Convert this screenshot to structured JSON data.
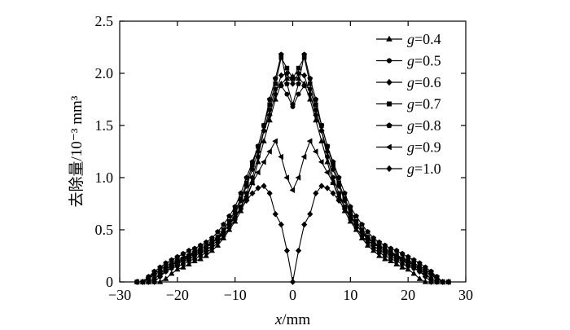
{
  "chart_data": {
    "type": "line",
    "xlabel": {
      "var": "x",
      "unit": "/mm"
    },
    "ylabel": "去除量/10⁻³ mm³",
    "xlim": [
      -30,
      30
    ],
    "ylim": [
      0,
      2.5
    ],
    "xticks": [
      -30,
      -20,
      -10,
      0,
      10,
      20,
      30
    ],
    "yticks": [
      0,
      0.5,
      1.0,
      1.5,
      2.0,
      2.5
    ],
    "xtick_labels": [
      "−30",
      "−20",
      "−10",
      "0",
      "10",
      "20",
      "30"
    ],
    "ytick_labels": [
      "0",
      "0.5",
      "1.0",
      "1.5",
      "2.0",
      "2.5"
    ],
    "grid": false,
    "legend": "top-right",
    "line_color": "#000000",
    "x": [
      -27,
      -26,
      -25,
      -24,
      -23,
      -22,
      -21,
      -20,
      -19,
      -18,
      -17,
      -16,
      -15,
      -14,
      -13,
      -12,
      -11,
      -10,
      -9,
      -8,
      -7,
      -6,
      -5,
      -4,
      -3,
      -2,
      -1,
      0,
      1,
      2,
      3,
      4,
      5,
      6,
      7,
      8,
      9,
      10,
      11,
      12,
      13,
      14,
      15,
      16,
      17,
      18,
      19,
      20,
      21,
      22,
      23,
      24,
      25,
      26,
      27
    ],
    "series": [
      {
        "name": "g=0.4",
        "label_var": "g",
        "label_value": "=0.4",
        "marker": "triangle-up",
        "values": [
          0,
          0,
          0,
          0,
          0,
          0.03,
          0.08,
          0.12,
          0.14,
          0.17,
          0.2,
          0.22,
          0.25,
          0.3,
          0.35,
          0.42,
          0.5,
          0.58,
          0.68,
          0.8,
          0.95,
          1.15,
          1.35,
          1.55,
          1.75,
          1.9,
          1.95,
          1.97,
          1.95,
          1.9,
          1.75,
          1.55,
          1.35,
          1.15,
          0.95,
          0.8,
          0.68,
          0.58,
          0.5,
          0.42,
          0.35,
          0.3,
          0.25,
          0.22,
          0.2,
          0.17,
          0.14,
          0.12,
          0.08,
          0.03,
          0,
          0,
          0,
          0,
          0
        ]
      },
      {
        "name": "g=0.5",
        "label_var": "g",
        "label_value": "=0.5",
        "marker": "circle",
        "values": [
          0,
          0,
          0,
          0.03,
          0.07,
          0.1,
          0.13,
          0.15,
          0.17,
          0.2,
          0.22,
          0.25,
          0.28,
          0.32,
          0.38,
          0.44,
          0.52,
          0.6,
          0.72,
          0.85,
          1.0,
          1.2,
          1.45,
          1.65,
          1.85,
          1.88,
          1.8,
          1.68,
          1.8,
          1.88,
          1.85,
          1.65,
          1.45,
          1.2,
          1.0,
          0.85,
          0.72,
          0.6,
          0.52,
          0.44,
          0.38,
          0.32,
          0.28,
          0.25,
          0.22,
          0.2,
          0.17,
          0.15,
          0.13,
          0.1,
          0.07,
          0.03,
          0,
          0,
          0
        ]
      },
      {
        "name": "g=0.6",
        "label_var": "g",
        "label_value": "=0.6",
        "marker": "diamond",
        "values": [
          0,
          0,
          0,
          0,
          0.05,
          0.1,
          0.14,
          0.17,
          0.2,
          0.22,
          0.25,
          0.28,
          0.3,
          0.35,
          0.4,
          0.48,
          0.55,
          0.65,
          0.78,
          0.92,
          1.08,
          1.25,
          1.45,
          1.6,
          1.8,
          1.98,
          2.0,
          1.9,
          2.0,
          1.98,
          1.8,
          1.6,
          1.45,
          1.25,
          1.08,
          0.92,
          0.78,
          0.65,
          0.55,
          0.48,
          0.4,
          0.35,
          0.3,
          0.28,
          0.25,
          0.22,
          0.2,
          0.17,
          0.14,
          0.1,
          0.05,
          0,
          0,
          0,
          0
        ]
      },
      {
        "name": "g=0.7",
        "label_var": "g",
        "label_value": "=0.7",
        "marker": "square",
        "values": [
          0,
          0,
          0,
          0.03,
          0.08,
          0.12,
          0.16,
          0.2,
          0.22,
          0.25,
          0.28,
          0.3,
          0.33,
          0.38,
          0.43,
          0.5,
          0.58,
          0.68,
          0.8,
          0.95,
          1.12,
          1.3,
          1.5,
          1.7,
          1.9,
          2.15,
          2.05,
          1.95,
          2.05,
          2.15,
          1.9,
          1.7,
          1.5,
          1.3,
          1.12,
          0.95,
          0.8,
          0.68,
          0.58,
          0.5,
          0.43,
          0.38,
          0.33,
          0.3,
          0.28,
          0.25,
          0.22,
          0.2,
          0.16,
          0.12,
          0.08,
          0.03,
          0,
          0,
          0
        ]
      },
      {
        "name": "g=0.8",
        "label_var": "g",
        "label_value": "=0.8",
        "marker": "pentagon",
        "values": [
          0,
          0,
          0.05,
          0.1,
          0.14,
          0.18,
          0.21,
          0.24,
          0.27,
          0.3,
          0.32,
          0.35,
          0.38,
          0.42,
          0.48,
          0.55,
          0.63,
          0.72,
          0.85,
          1.0,
          1.15,
          1.3,
          1.5,
          1.75,
          1.95,
          2.18,
          1.9,
          1.7,
          1.9,
          2.18,
          1.95,
          1.75,
          1.5,
          1.3,
          1.15,
          1.0,
          0.85,
          0.72,
          0.63,
          0.55,
          0.48,
          0.42,
          0.38,
          0.35,
          0.32,
          0.3,
          0.27,
          0.24,
          0.21,
          0.18,
          0.14,
          0.1,
          0.05,
          0,
          0
        ]
      },
      {
        "name": "g=0.9",
        "label_var": "g",
        "label_value": "=0.9",
        "marker": "triangle-left",
        "values": [
          0,
          0,
          0.04,
          0.08,
          0.12,
          0.15,
          0.18,
          0.21,
          0.23,
          0.26,
          0.29,
          0.32,
          0.35,
          0.38,
          0.42,
          0.48,
          0.55,
          0.62,
          0.72,
          0.82,
          0.95,
          1.05,
          1.15,
          1.25,
          1.35,
          1.2,
          1.0,
          0.88,
          1.0,
          1.2,
          1.35,
          1.25,
          1.15,
          1.05,
          0.95,
          0.82,
          0.72,
          0.62,
          0.55,
          0.48,
          0.42,
          0.38,
          0.35,
          0.32,
          0.29,
          0.26,
          0.23,
          0.21,
          0.18,
          0.15,
          0.12,
          0.08,
          0.04,
          0,
          0
        ]
      },
      {
        "name": "g=1.0",
        "label_var": "g",
        "label_value": "=1.0",
        "marker": "diamond",
        "values": [
          0,
          0,
          0.03,
          0.07,
          0.1,
          0.13,
          0.16,
          0.19,
          0.21,
          0.24,
          0.27,
          0.3,
          0.33,
          0.37,
          0.42,
          0.48,
          0.55,
          0.62,
          0.7,
          0.78,
          0.85,
          0.9,
          0.92,
          0.85,
          0.65,
          0.55,
          0.3,
          0,
          0.3,
          0.55,
          0.65,
          0.85,
          0.92,
          0.9,
          0.85,
          0.78,
          0.7,
          0.62,
          0.55,
          0.48,
          0.42,
          0.37,
          0.33,
          0.3,
          0.27,
          0.24,
          0.21,
          0.19,
          0.16,
          0.13,
          0.1,
          0.07,
          0.03,
          0,
          0
        ]
      }
    ]
  }
}
